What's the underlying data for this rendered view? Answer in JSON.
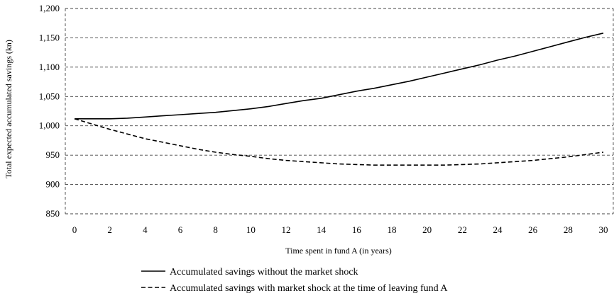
{
  "chart_data": {
    "type": "line",
    "xlabel": "Time spent in fund A (in years)",
    "ylabel": "Total expected accumulated savings (kn)",
    "xlim": [
      0,
      30
    ],
    "ylim": [
      850,
      1200
    ],
    "x_ticks": [
      "0",
      "2",
      "4",
      "6",
      "8",
      "10",
      "12",
      "14",
      "16",
      "18",
      "20",
      "22",
      "24",
      "26",
      "28",
      "30"
    ],
    "y_ticks": [
      "850",
      "900",
      "950",
      "1,000",
      "1,050",
      "1,100",
      "1,150",
      "1,200"
    ],
    "grid": true,
    "legend_position": "bottom",
    "x": [
      0,
      1,
      2,
      3,
      4,
      5,
      6,
      7,
      8,
      9,
      10,
      11,
      12,
      13,
      14,
      15,
      16,
      17,
      18,
      19,
      20,
      21,
      22,
      23,
      24,
      25,
      26,
      27,
      28,
      29,
      30
    ],
    "series": [
      {
        "name": "Accumulated savings without the market shock",
        "style": "solid",
        "color": "#000000",
        "values": [
          1012,
          1012,
          1012,
          1013,
          1015,
          1017,
          1019,
          1021,
          1023,
          1026,
          1029,
          1033,
          1038,
          1043,
          1047,
          1053,
          1059,
          1064,
          1070,
          1076,
          1083,
          1090,
          1097,
          1104,
          1112,
          1119,
          1127,
          1135,
          1143,
          1151,
          1158
        ]
      },
      {
        "name": "Accumulated savings with market shock at the time of leaving fund A",
        "style": "dashed",
        "color": "#000000",
        "values": [
          1012,
          1003,
          994,
          986,
          978,
          972,
          966,
          960,
          955,
          951,
          948,
          944,
          941,
          939,
          937,
          935,
          934,
          933,
          933,
          933,
          933,
          933,
          934,
          935,
          937,
          939,
          941,
          944,
          947,
          951,
          955
        ]
      }
    ]
  }
}
